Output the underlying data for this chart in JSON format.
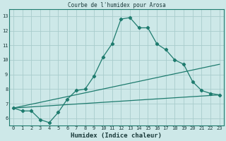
{
  "title": "Courbe de l'humidex pour Arosa",
  "xlabel": "Humidex (Indice chaleur)",
  "bg_color": "#cde8e8",
  "grid_color": "#a8cccc",
  "line_color": "#1e7b6e",
  "xlim": [
    -0.5,
    23.5
  ],
  "ylim": [
    5.5,
    13.5
  ],
  "xticks": [
    0,
    1,
    2,
    3,
    4,
    5,
    6,
    7,
    8,
    9,
    10,
    11,
    12,
    13,
    14,
    15,
    16,
    17,
    18,
    19,
    20,
    21,
    22,
    23
  ],
  "yticks": [
    6,
    7,
    8,
    9,
    10,
    11,
    12,
    13
  ],
  "line1_x": [
    0,
    1,
    2,
    3,
    4,
    5,
    6,
    7,
    8,
    9,
    10,
    11,
    12,
    13,
    14,
    15,
    16,
    17,
    18,
    19,
    20,
    21,
    22,
    23
  ],
  "line1_y": [
    6.7,
    6.5,
    6.5,
    5.9,
    5.7,
    6.4,
    7.3,
    7.9,
    8.0,
    8.9,
    10.2,
    11.1,
    12.8,
    12.9,
    12.2,
    12.2,
    11.1,
    10.7,
    10.0,
    9.7,
    8.5,
    7.9,
    7.7,
    7.6
  ],
  "line2_x": [
    0,
    23
  ],
  "line2_y": [
    6.7,
    7.6
  ],
  "line3_x": [
    0,
    23
  ],
  "line3_y": [
    6.7,
    9.7
  ]
}
